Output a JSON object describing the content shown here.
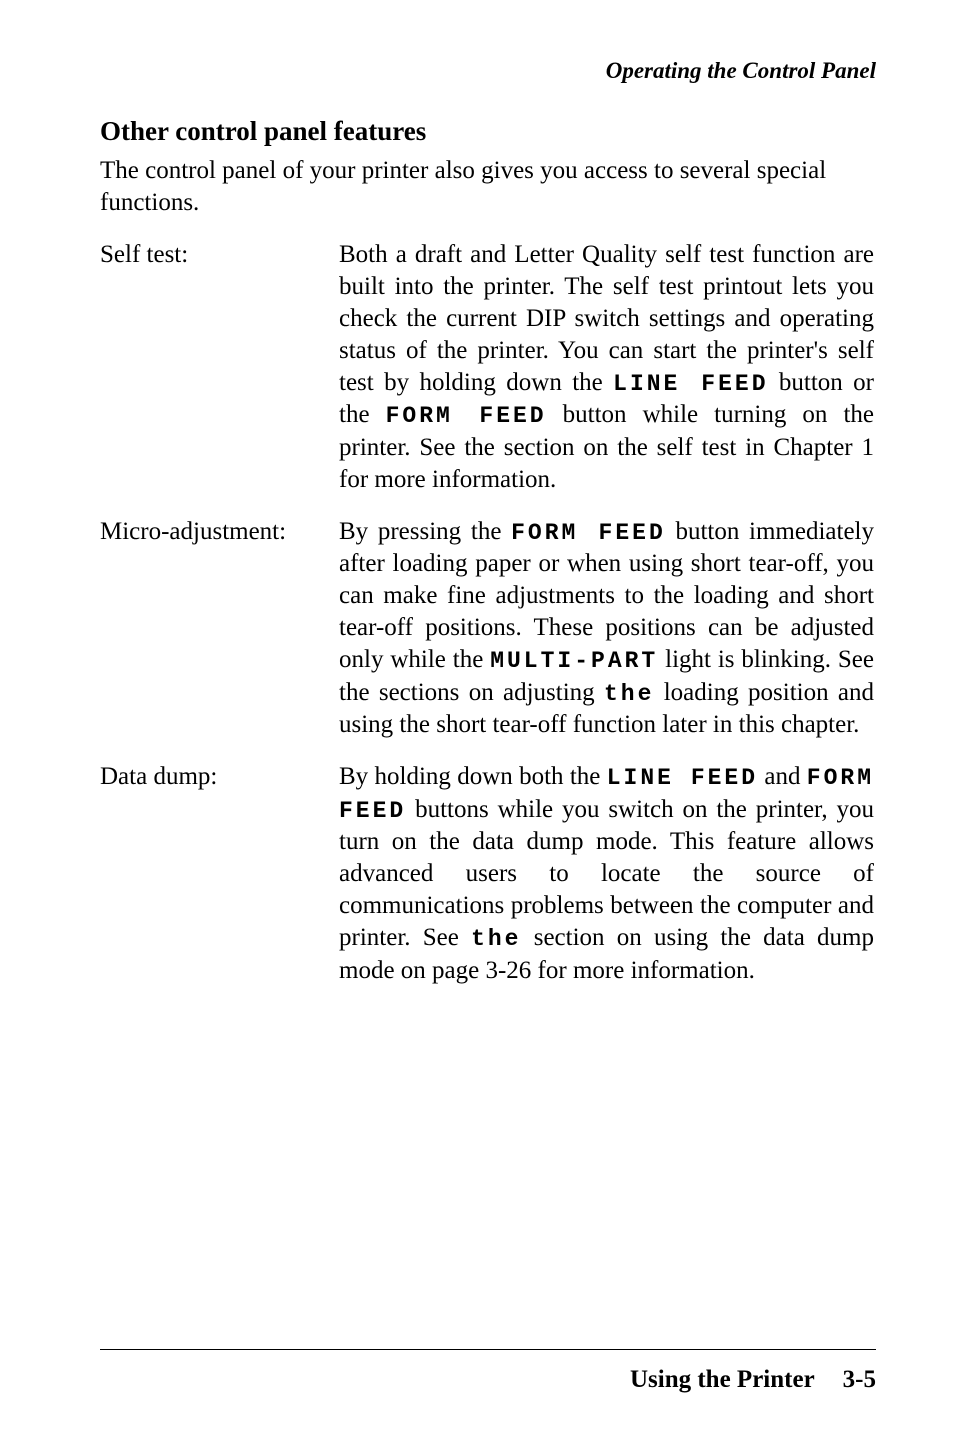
{
  "running_head": "Operating the Control Panel",
  "section_title": "Other control panel features",
  "intro": "The control panel of your printer also gives you access to several special functions.",
  "items": [
    {
      "term": "Self test:",
      "def": [
        {
          "t": "Both a draft and Letter Quality self test function are built into the printer. The self test printout lets you check the current DIP switch settings and operating status of the printer. You can start the printer's self test by holding down the "
        },
        {
          "m": "LINE FEED"
        },
        {
          "t": " button or the "
        },
        {
          "m": "FORM FEED"
        },
        {
          "t": " button while turning on the printer. See the section on the self test in Chapter 1 for more information."
        }
      ]
    },
    {
      "term": "Micro-adjustment:",
      "def": [
        {
          "t": "By pressing the "
        },
        {
          "m": "FORM FEED"
        },
        {
          "t": " button immediately after loading paper or when using short tear-off, you can make fine adjustments to the loading and short tear-off positions. These positions can be adjusted only while the "
        },
        {
          "m": "MULTI-PART"
        },
        {
          "t": " light is blinking. See the sections on adjusting "
        },
        {
          "m": "the"
        },
        {
          "t": " loading position and using the short tear-off function later in this chapter."
        }
      ]
    },
    {
      "term": "Data dump:",
      "def": [
        {
          "t": "By holding down both the "
        },
        {
          "m": "LINE FEED"
        },
        {
          "t": " and "
        },
        {
          "m": "FORM"
        },
        {
          "t": " "
        },
        {
          "m": "FEED"
        },
        {
          "t": " buttons while you switch on the printer, you turn on the data dump mode. This feature allows advanced users to locate the source of communications problems between the computer and printer. See "
        },
        {
          "m": "the"
        },
        {
          "t": " section on using the data dump mode on page 3-26 for more information."
        }
      ]
    }
  ],
  "footer_left": "Using the Printer",
  "footer_right": "3-5"
}
